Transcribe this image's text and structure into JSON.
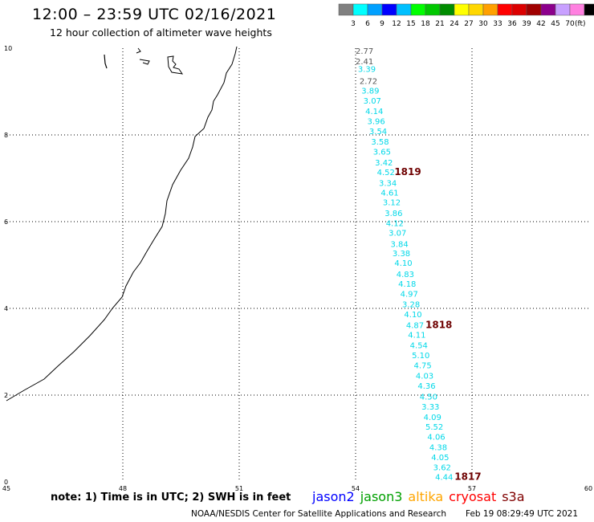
{
  "header": {
    "title": "12:00 – 23:59 UTC 02/16/2021",
    "subtitle": "12 hour collection of altimeter wave heights"
  },
  "scale": {
    "unit": "(ft)",
    "bins": [
      {
        "label": "",
        "color": "#808080"
      },
      {
        "label": "3",
        "color": "#00ffff"
      },
      {
        "label": "6",
        "color": "#00a0ff"
      },
      {
        "label": "9",
        "color": "#0000ff"
      },
      {
        "label": "12",
        "color": "#00c0ff"
      },
      {
        "label": "15",
        "color": "#00ff00"
      },
      {
        "label": "18",
        "color": "#00c800"
      },
      {
        "label": "21",
        "color": "#008c00"
      },
      {
        "label": "24",
        "color": "#ffff00"
      },
      {
        "label": "27",
        "color": "#ffd700"
      },
      {
        "label": "30",
        "color": "#ffa000"
      },
      {
        "label": "33",
        "color": "#ff0000"
      },
      {
        "label": "36",
        "color": "#dc0000"
      },
      {
        "label": "39",
        "color": "#a00000"
      },
      {
        "label": "42",
        "color": "#8c008c"
      },
      {
        "label": "45",
        "color": "#c8a0ff"
      },
      {
        "label": "70",
        "color": "#ff80e0"
      },
      {
        "label": "",
        "color": "#000000"
      }
    ]
  },
  "axes": {
    "lon_labels": [
      "45",
      "48",
      "51",
      "54",
      "57",
      "60"
    ],
    "lat_labels": [
      "0",
      "2",
      "4",
      "6",
      "8",
      "10"
    ]
  },
  "track": {
    "colors": {
      "cyan": "#00d8e8",
      "gray": "#555555",
      "time": "#6e0000"
    },
    "readings": [
      {
        "value": "2.77",
        "lon": 54.0,
        "lat": 9.87,
        "color": "gray"
      },
      {
        "value": "2.41",
        "lon": 54.0,
        "lat": 9.63,
        "color": "gray"
      },
      {
        "value": "3.39",
        "lon": 54.06,
        "lat": 9.45,
        "color": "cyan"
      },
      {
        "value": "2.72",
        "lon": 54.1,
        "lat": 9.18,
        "color": "gray"
      },
      {
        "value": "3.89",
        "lon": 54.15,
        "lat": 8.95,
        "color": "cyan"
      },
      {
        "value": "3.07",
        "lon": 54.2,
        "lat": 8.72,
        "color": "cyan"
      },
      {
        "value": "4.14",
        "lon": 54.25,
        "lat": 8.48,
        "color": "cyan"
      },
      {
        "value": "3.96",
        "lon": 54.3,
        "lat": 8.25,
        "color": "cyan"
      },
      {
        "value": "3.54",
        "lon": 54.35,
        "lat": 8.02,
        "color": "cyan"
      },
      {
        "value": "3.58",
        "lon": 54.4,
        "lat": 7.78,
        "color": "cyan"
      },
      {
        "value": "3.65",
        "lon": 54.45,
        "lat": 7.55,
        "color": "cyan"
      },
      {
        "value": "3.42",
        "lon": 54.5,
        "lat": 7.3,
        "color": "cyan"
      },
      {
        "value": "4.52",
        "lon": 54.55,
        "lat": 7.07,
        "color": "cyan"
      },
      {
        "value": "3.34",
        "lon": 54.6,
        "lat": 6.82,
        "color": "cyan"
      },
      {
        "value": "4.61",
        "lon": 54.65,
        "lat": 6.6,
        "color": "cyan"
      },
      {
        "value": "3.12",
        "lon": 54.7,
        "lat": 6.38,
        "color": "cyan"
      },
      {
        "value": "3.86",
        "lon": 54.75,
        "lat": 6.13,
        "color": "cyan"
      },
      {
        "value": "4.12",
        "lon": 54.78,
        "lat": 5.9,
        "color": "cyan"
      },
      {
        "value": "3.07",
        "lon": 54.85,
        "lat": 5.68,
        "color": "cyan"
      },
      {
        "value": "3.84",
        "lon": 54.9,
        "lat": 5.42,
        "color": "cyan"
      },
      {
        "value": "3.38",
        "lon": 54.95,
        "lat": 5.2,
        "color": "cyan"
      },
      {
        "value": "4.10",
        "lon": 55.0,
        "lat": 4.98,
        "color": "cyan"
      },
      {
        "value": "4.83",
        "lon": 55.05,
        "lat": 4.72,
        "color": "cyan"
      },
      {
        "value": "4.18",
        "lon": 55.1,
        "lat": 4.5,
        "color": "cyan"
      },
      {
        "value": "4.97",
        "lon": 55.15,
        "lat": 4.27,
        "color": "cyan"
      },
      {
        "value": "3.28",
        "lon": 55.2,
        "lat": 4.03,
        "color": "cyan"
      },
      {
        "value": "4.10",
        "lon": 55.25,
        "lat": 3.8,
        "color": "cyan"
      },
      {
        "value": "4.87",
        "lon": 55.3,
        "lat": 3.55,
        "color": "cyan"
      },
      {
        "value": "4.11",
        "lon": 55.35,
        "lat": 3.32,
        "color": "cyan"
      },
      {
        "value": "4.54",
        "lon": 55.4,
        "lat": 3.08,
        "color": "cyan"
      },
      {
        "value": "5.10",
        "lon": 55.45,
        "lat": 2.85,
        "color": "cyan"
      },
      {
        "value": "4.75",
        "lon": 55.5,
        "lat": 2.62,
        "color": "cyan"
      },
      {
        "value": "4.03",
        "lon": 55.55,
        "lat": 2.38,
        "color": "cyan"
      },
      {
        "value": "4.36",
        "lon": 55.6,
        "lat": 2.15,
        "color": "cyan"
      },
      {
        "value": "4.50",
        "lon": 55.65,
        "lat": 1.9,
        "color": "cyan"
      },
      {
        "value": "3.33",
        "lon": 55.7,
        "lat": 1.67,
        "color": "cyan"
      },
      {
        "value": "4.09",
        "lon": 55.75,
        "lat": 1.43,
        "color": "cyan"
      },
      {
        "value": "5.52",
        "lon": 55.8,
        "lat": 1.2,
        "color": "cyan"
      },
      {
        "value": "4.06",
        "lon": 55.85,
        "lat": 0.97,
        "color": "cyan"
      },
      {
        "value": "4.38",
        "lon": 55.9,
        "lat": 0.73,
        "color": "cyan"
      },
      {
        "value": "4.05",
        "lon": 55.95,
        "lat": 0.5,
        "color": "cyan"
      },
      {
        "value": "3.62",
        "lon": 56.0,
        "lat": 0.27,
        "color": "cyan"
      },
      {
        "value": "4.44",
        "lon": 56.05,
        "lat": 0.05,
        "color": "cyan"
      }
    ],
    "times": [
      {
        "label": "1819",
        "lon": 55.0,
        "lat": 7.07
      },
      {
        "label": "1818",
        "lon": 55.8,
        "lat": 3.55
      },
      {
        "label": "1817",
        "lon": 56.55,
        "lat": 0.05
      }
    ]
  },
  "note": "note: 1) Time is in UTC; 2) SWH is in feet",
  "legend": [
    {
      "label": "jason2",
      "color": "#0000ff"
    },
    {
      "label": "jason3",
      "color": "#00a000"
    },
    {
      "label": "altika",
      "color": "#ffa500"
    },
    {
      "label": "cryosat",
      "color": "#ff0000"
    },
    {
      "label": "s3a",
      "color": "#800000"
    }
  ],
  "footer": {
    "credit": "NOAA/NESDIS Center for Satellite Applications and Research",
    "generated": "Feb 19 08:29:49 UTC 2021"
  }
}
